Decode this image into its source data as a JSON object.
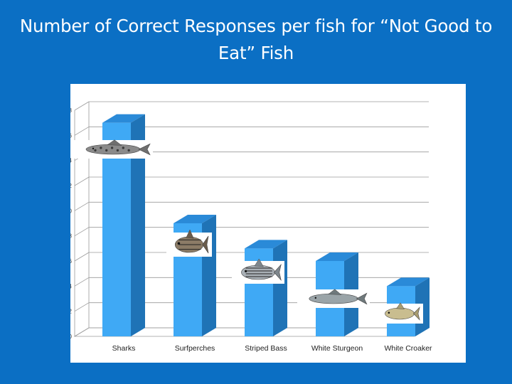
{
  "slide": {
    "title": "Number of Correct Responses per fish for “Not Good to Eat” Fish"
  },
  "colors": {
    "background": "#0b6fc4",
    "bar_front": "#3fa9f5",
    "bar_top": "#2a8ad8",
    "bar_side": "#1f73b6"
  },
  "chart_data": {
    "type": "bar",
    "categories": [
      "Sharks",
      "Surfperches",
      "Striped Bass",
      "White Sturgeon",
      "White Croaker"
    ],
    "values": [
      17,
      9,
      7,
      6,
      4
    ],
    "ylim": [
      0,
      18
    ],
    "yticks": [
      0,
      2,
      4,
      6,
      8,
      10,
      12,
      14,
      16,
      18
    ],
    "grid": true,
    "three_d": true,
    "title": "",
    "xlabel": "",
    "ylabel": "",
    "bar_images": [
      "shark-image",
      "surfperch-image",
      "striped-bass-image",
      "white-sturgeon-image",
      "white-croaker-image"
    ]
  }
}
